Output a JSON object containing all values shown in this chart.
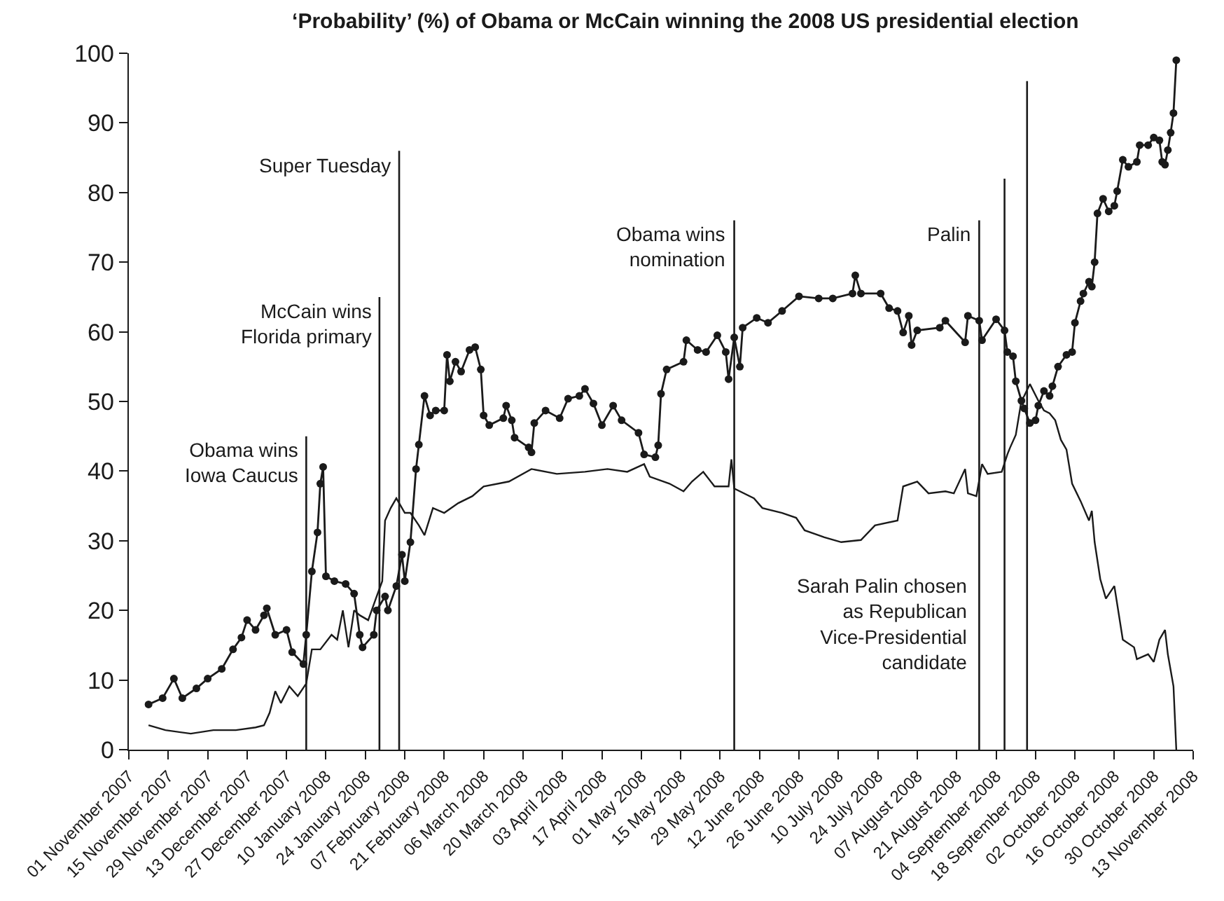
{
  "chart_data": {
    "type": "line",
    "title": "‘Probability’ (%) of Obama or McCain winning the 2008 US presidential election",
    "xlim": [
      "2007-11-01",
      "2008-11-13"
    ],
    "xticks": [
      {
        "value": "2007-11-01",
        "label": "01 November 2007"
      },
      {
        "value": "2007-11-15",
        "label": "15 November 2007"
      },
      {
        "value": "2007-11-29",
        "label": "29 November 2007"
      },
      {
        "value": "2007-12-13",
        "label": "13 December 2007"
      },
      {
        "value": "2007-12-27",
        "label": "27 December 2007"
      },
      {
        "value": "2008-01-10",
        "label": "10 January 2008"
      },
      {
        "value": "2008-01-24",
        "label": "24 January 2008"
      },
      {
        "value": "2008-02-07",
        "label": "07 February 2008"
      },
      {
        "value": "2008-02-21",
        "label": "21 February 2008"
      },
      {
        "value": "2008-03-06",
        "label": "06 March 2008"
      },
      {
        "value": "2008-03-20",
        "label": "20 March 2008"
      },
      {
        "value": "2008-04-03",
        "label": "03 April 2008"
      },
      {
        "value": "2008-04-17",
        "label": "17 April 2008"
      },
      {
        "value": "2008-05-01",
        "label": "01 May 2008"
      },
      {
        "value": "2008-05-15",
        "label": "15 May 2008"
      },
      {
        "value": "2008-05-29",
        "label": "29 May 2008"
      },
      {
        "value": "2008-06-12",
        "label": "12 June 2008"
      },
      {
        "value": "2008-06-26",
        "label": "26 June 2008"
      },
      {
        "value": "2008-07-10",
        "label": "10 July 2008"
      },
      {
        "value": "2008-07-24",
        "label": "24 July 2008"
      },
      {
        "value": "2008-08-07",
        "label": "07 August 2008"
      },
      {
        "value": "2008-08-21",
        "label": "21 August 2008"
      },
      {
        "value": "2008-09-04",
        "label": "04 September 2008"
      },
      {
        "value": "2008-09-18",
        "label": "18 September 2008"
      },
      {
        "value": "2008-10-02",
        "label": "02 October 2008"
      },
      {
        "value": "2008-10-16",
        "label": "16 October 2008"
      },
      {
        "value": "2008-10-30",
        "label": "30 October 2008"
      },
      {
        "value": "2008-11-13",
        "label": "13 November 2008"
      }
    ],
    "ylim": [
      0,
      100
    ],
    "yticks": [
      0,
      10,
      20,
      30,
      40,
      50,
      60,
      70,
      80,
      90,
      100
    ],
    "series": [
      {
        "color": "#1a1a1a",
        "marker": "circle",
        "x": [
          "2007-11-08",
          "2007-11-13",
          "2007-11-17",
          "2007-11-20",
          "2007-11-25",
          "2007-11-29",
          "2007-12-04",
          "2007-12-08",
          "2007-12-11",
          "2007-12-13",
          "2007-12-16",
          "2007-12-19",
          "2007-12-20",
          "2007-12-23",
          "2007-12-27",
          "2007-12-29",
          "2008-01-02",
          "2008-01-03",
          "2008-01-05",
          "2008-01-07",
          "2008-01-08",
          "2008-01-09",
          "2008-01-10",
          "2008-01-13",
          "2008-01-17",
          "2008-01-20",
          "2008-01-22",
          "2008-01-23",
          "2008-01-27",
          "2008-01-28",
          "2008-01-31",
          "2008-02-01",
          "2008-02-04",
          "2008-02-06",
          "2008-02-07",
          "2008-02-09",
          "2008-02-11",
          "2008-02-12",
          "2008-02-14",
          "2008-02-16",
          "2008-02-18",
          "2008-02-21",
          "2008-02-22",
          "2008-02-23",
          "2008-02-25",
          "2008-02-27",
          "2008-03-01",
          "2008-03-03",
          "2008-03-05",
          "2008-03-06",
          "2008-03-08",
          "2008-03-13",
          "2008-03-14",
          "2008-03-16",
          "2008-03-17",
          "2008-03-22",
          "2008-03-23",
          "2008-03-24",
          "2008-03-28",
          "2008-04-02",
          "2008-04-05",
          "2008-04-09",
          "2008-04-11",
          "2008-04-14",
          "2008-04-17",
          "2008-04-21",
          "2008-04-24",
          "2008-04-30",
          "2008-05-02",
          "2008-05-06",
          "2008-05-07",
          "2008-05-08",
          "2008-05-10",
          "2008-05-16",
          "2008-05-17",
          "2008-05-21",
          "2008-05-24",
          "2008-05-28",
          "2008-05-31",
          "2008-06-01",
          "2008-06-03",
          "2008-06-05",
          "2008-06-06",
          "2008-06-11",
          "2008-06-15",
          "2008-06-20",
          "2008-06-26",
          "2008-07-03",
          "2008-07-08",
          "2008-07-15",
          "2008-07-16",
          "2008-07-18",
          "2008-07-25",
          "2008-07-28",
          "2008-07-31",
          "2008-08-02",
          "2008-08-04",
          "2008-08-05",
          "2008-08-07",
          "2008-08-15",
          "2008-08-17",
          "2008-08-24",
          "2008-08-25",
          "2008-08-29",
          "2008-08-30",
          "2008-09-04",
          "2008-09-07",
          "2008-09-08",
          "2008-09-10",
          "2008-09-11",
          "2008-09-13",
          "2008-09-14",
          "2008-09-16",
          "2008-09-18",
          "2008-09-19",
          "2008-09-21",
          "2008-09-23",
          "2008-09-24",
          "2008-09-26",
          "2008-09-29",
          "2008-10-01",
          "2008-10-02",
          "2008-10-04",
          "2008-10-05",
          "2008-10-07",
          "2008-10-08",
          "2008-10-09",
          "2008-10-10",
          "2008-10-12",
          "2008-10-14",
          "2008-10-16",
          "2008-10-17",
          "2008-10-19",
          "2008-10-21",
          "2008-10-24",
          "2008-10-25",
          "2008-10-28",
          "2008-10-30",
          "2008-11-01",
          "2008-11-02",
          "2008-11-03",
          "2008-11-04",
          "2008-11-05",
          "2008-11-06",
          "2008-11-07"
        ],
        "values": [
          6.5,
          7.4,
          10.2,
          7.4,
          8.8,
          10.2,
          11.6,
          14.4,
          16.1,
          18.6,
          17.2,
          19.3,
          20.3,
          16.5,
          17.2,
          14,
          12.3,
          16.5,
          25.6,
          31.2,
          38.2,
          40.6,
          24.9,
          24.2,
          23.8,
          22.4,
          16.5,
          14.7,
          16.5,
          20,
          22,
          20,
          23.5,
          28,
          24.2,
          29.8,
          40.3,
          43.8,
          50.8,
          48,
          48.7,
          48.7,
          56.7,
          52.9,
          55.7,
          54.3,
          57.4,
          57.8,
          54.6,
          48,
          46.6,
          47.6,
          49.4,
          47.3,
          44.8,
          43.4,
          42.7,
          46.9,
          48.7,
          47.6,
          50.4,
          50.8,
          51.8,
          49.7,
          46.6,
          49.4,
          47.3,
          45.5,
          42.4,
          42,
          43.7,
          51.1,
          54.6,
          55.7,
          58.8,
          57.4,
          57.1,
          59.5,
          57.1,
          53.2,
          59.2,
          55,
          60.6,
          62,
          61.3,
          63,
          65.1,
          64.8,
          64.8,
          65.5,
          68.1,
          65.5,
          65.5,
          63.4,
          63,
          59.9,
          62.3,
          58.1,
          60.2,
          60.6,
          61.6,
          58.5,
          62.3,
          61.6,
          58.8,
          61.8,
          60.2,
          57.1,
          56.5,
          52.9,
          50.1,
          49,
          46.9,
          47.3,
          49.4,
          51.5,
          50.8,
          52.2,
          55,
          56.7,
          57.1,
          61.3,
          64.4,
          65.5,
          67.2,
          66.5,
          70,
          77,
          79.1,
          77.3,
          78.1,
          80.2,
          84.7,
          83.7,
          84.4,
          86.8,
          86.8,
          87.9,
          87.5,
          84.4,
          84,
          86.1,
          88.6,
          91.4,
          99
        ]
      },
      {
        "color": "#1a1a1a",
        "marker": "none",
        "x": [
          "2007-11-08",
          "2007-11-14",
          "2007-11-23",
          "2007-12-01",
          "2007-12-09",
          "2007-12-16",
          "2007-12-19",
          "2007-12-21",
          "2007-12-23",
          "2007-12-25",
          "2007-12-28",
          "2007-12-31",
          "2008-01-03",
          "2008-01-05",
          "2008-01-08",
          "2008-01-12",
          "2008-01-14",
          "2008-01-16",
          "2008-01-18",
          "2008-01-20",
          "2008-01-22",
          "2008-01-25",
          "2008-01-28",
          "2008-01-30",
          "2008-01-31",
          "2008-02-02",
          "2008-02-04",
          "2008-02-07",
          "2008-02-09",
          "2008-02-12",
          "2008-02-14",
          "2008-02-17",
          "2008-02-21",
          "2008-02-26",
          "2008-03-02",
          "2008-03-06",
          "2008-03-15",
          "2008-03-23",
          "2008-04-01",
          "2008-04-11",
          "2008-04-19",
          "2008-04-26",
          "2008-05-02",
          "2008-05-04",
          "2008-05-11",
          "2008-05-16",
          "2008-05-19",
          "2008-05-23",
          "2008-05-27",
          "2008-06-01",
          "2008-06-02",
          "2008-06-03",
          "2008-06-10",
          "2008-06-13",
          "2008-06-20",
          "2008-06-25",
          "2008-06-28",
          "2008-07-05",
          "2008-07-11",
          "2008-07-18",
          "2008-07-23",
          "2008-07-31",
          "2008-08-02",
          "2008-08-07",
          "2008-08-11",
          "2008-08-17",
          "2008-08-20",
          "2008-08-24",
          "2008-08-25",
          "2008-08-28",
          "2008-08-30",
          "2008-09-01",
          "2008-09-06",
          "2008-09-08",
          "2008-09-09",
          "2008-09-11",
          "2008-09-13",
          "2008-09-14",
          "2008-09-16",
          "2008-09-19",
          "2008-09-21",
          "2008-09-23",
          "2008-09-25",
          "2008-09-27",
          "2008-09-29",
          "2008-10-01",
          "2008-10-04",
          "2008-10-07",
          "2008-10-08",
          "2008-10-09",
          "2008-10-11",
          "2008-10-13",
          "2008-10-16",
          "2008-10-19",
          "2008-10-23",
          "2008-10-24",
          "2008-10-28",
          "2008-10-30",
          "2008-11-01",
          "2008-11-03",
          "2008-11-04",
          "2008-11-06",
          "2008-11-07"
        ],
        "values": [
          3.5,
          2.8,
          2.3,
          2.8,
          2.8,
          3.2,
          3.5,
          5.3,
          8.4,
          6.7,
          9.1,
          7.7,
          9.5,
          14.4,
          14.4,
          16.5,
          15.8,
          20,
          14.7,
          20,
          19.3,
          18.6,
          22,
          24.2,
          32.9,
          34.7,
          36.1,
          34,
          34,
          32.2,
          30.8,
          34.7,
          34,
          35.4,
          36.4,
          37.8,
          38.5,
          40.3,
          39.6,
          39.9,
          40.3,
          39.9,
          41,
          39.2,
          38.2,
          37.1,
          38.5,
          39.9,
          37.8,
          37.8,
          41.7,
          37.5,
          36.1,
          34.7,
          34,
          33.3,
          31.5,
          30.5,
          29.8,
          30.1,
          32.2,
          32.9,
          37.8,
          38.5,
          36.8,
          37.1,
          36.8,
          40.3,
          36.8,
          36.4,
          41,
          39.6,
          39.9,
          42.4,
          43.4,
          45.2,
          50.1,
          50.8,
          52.5,
          50.1,
          48.7,
          48.3,
          47.3,
          44.5,
          43.1,
          38.2,
          35.7,
          32.9,
          34.3,
          29.8,
          24.5,
          21.7,
          23.5,
          15.8,
          14.7,
          13,
          13.7,
          12.6,
          15.8,
          17.2,
          13.7,
          9.1,
          0
        ]
      }
    ],
    "ref_lines": [
      {
        "axis": "x",
        "value": "2008-01-03",
        "label": "Obama wins\nIowa Caucus"
      },
      {
        "axis": "x",
        "value": "2008-01-29",
        "label": "McCain wins\nFlorida primary"
      },
      {
        "axis": "x",
        "value": "2008-02-05",
        "label": "Super Tuesday"
      },
      {
        "axis": "x",
        "value": "2008-06-03",
        "label": "Obama wins\nnomination"
      },
      {
        "axis": "x",
        "value": "2008-08-29",
        "label": "Palin"
      },
      {
        "axis": "x",
        "value": "2008-09-07"
      },
      {
        "axis": "x",
        "value": "2008-09-15"
      }
    ],
    "annotations": [
      {
        "text": "Sarah Palin chosen\nas Republican\nVice-Presidential\ncandidate",
        "x": "2008-08-29",
        "y": 18
      }
    ]
  }
}
